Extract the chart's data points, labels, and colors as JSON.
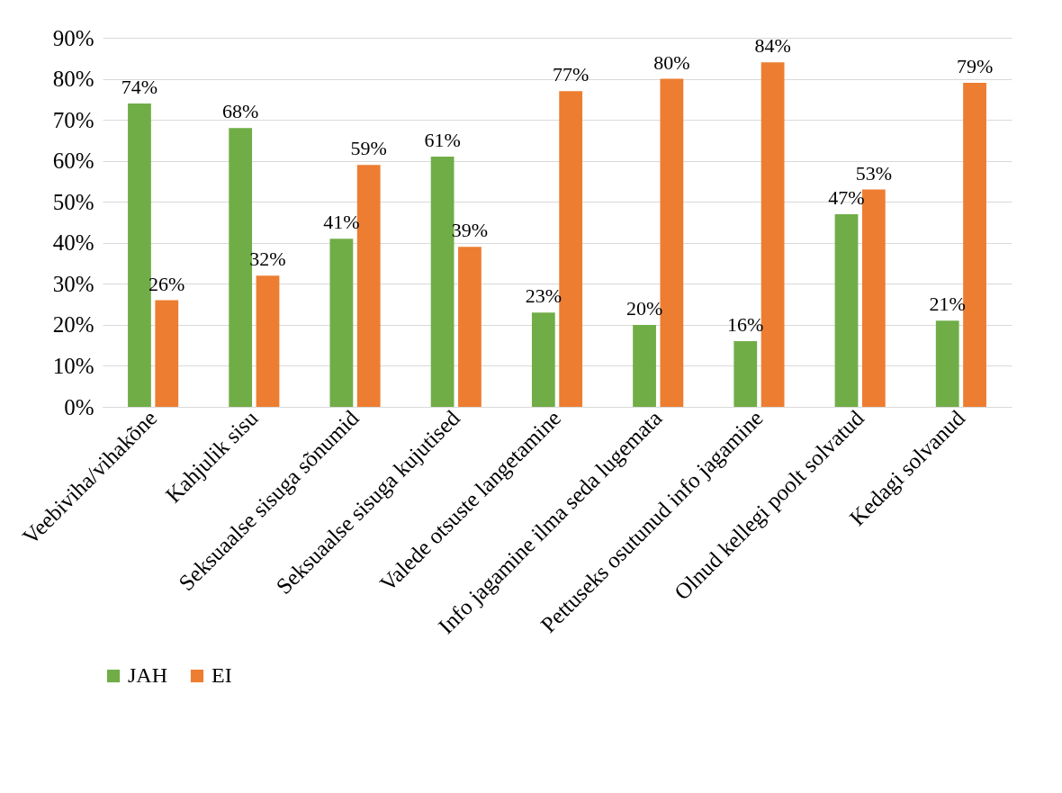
{
  "chart_data": {
    "type": "bar",
    "categories": [
      "Veebiviha/vihakõne",
      "Kahjulik sisu",
      "Seksuaalse sisuga sõnumid",
      "Seksuaalse sisuga kujutised",
      "Valede otsuste langetamine",
      "Info jagamine ilma seda lugemata",
      "Pettuseks osutunud info jagamine",
      "Olnud kellegi poolt solvatud",
      "Kedagi solvanud"
    ],
    "series": [
      {
        "name": "JAH",
        "color": "#70ad47",
        "values": [
          74,
          68,
          41,
          61,
          23,
          20,
          16,
          47,
          21
        ],
        "value_labels": [
          "74%",
          "68%",
          "41%",
          "61%",
          "23%",
          "20%",
          "16%",
          "47%",
          "21%"
        ]
      },
      {
        "name": "EI",
        "color": "#ed7d31",
        "values": [
          26,
          32,
          59,
          39,
          77,
          80,
          84,
          53,
          79
        ],
        "value_labels": [
          "26%",
          "32%",
          "59%",
          "39%",
          "77%",
          "80%",
          "84%",
          "53%",
          "79%"
        ]
      }
    ],
    "ylim": [
      0,
      90
    ],
    "yticks": [
      {
        "value": 0,
        "label": "0%"
      },
      {
        "value": 10,
        "label": "10%"
      },
      {
        "value": 20,
        "label": "20%"
      },
      {
        "value": 30,
        "label": "30%"
      },
      {
        "value": 40,
        "label": "40%"
      },
      {
        "value": 50,
        "label": "50%"
      },
      {
        "value": 60,
        "label": "60%"
      },
      {
        "value": 70,
        "label": "70%"
      },
      {
        "value": 80,
        "label": "80%"
      },
      {
        "value": 90,
        "label": "90%"
      }
    ],
    "grid": "y",
    "legend": "bottom"
  }
}
